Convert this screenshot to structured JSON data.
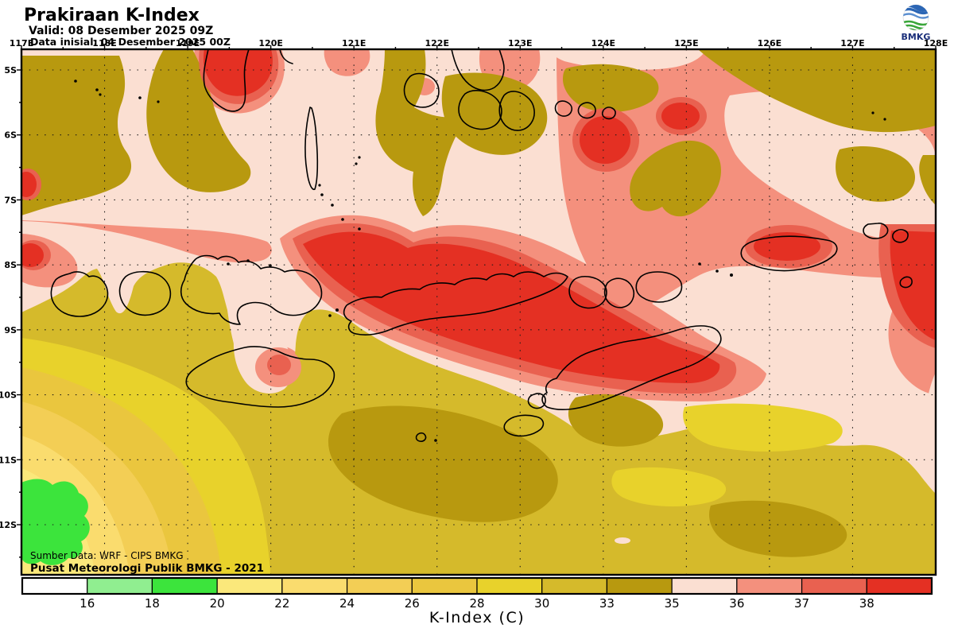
{
  "header": {
    "title": "Prakiraan K-Index",
    "valid_line": "Valid: 08 Desember 2025 09Z",
    "init_line": "Data inisial: 04 Desember 2025 00Z"
  },
  "logo": {
    "text": "BMKG"
  },
  "map": {
    "lon_labels": [
      "117E",
      "118E",
      "119E",
      "120E",
      "121E",
      "122E",
      "123E",
      "124E",
      "125E",
      "126E",
      "127E",
      "128E"
    ],
    "lat_labels": [
      "5S",
      "6S",
      "7S",
      "8S",
      "9S",
      "10S",
      "11S",
      "12S"
    ],
    "source_line1": "Sumber Data: WRF - CIPS BMKG",
    "source_line2": "Pusat Meteorologi Publik BMKG - 2021"
  },
  "palette": {
    "below_16": "#FFFFFF",
    "k16_18": "#90EE90",
    "k18_20": "#3CE43C",
    "k20_22": "#FBE87B",
    "k22_24": "#FADC6E",
    "k24_26": "#F3CE55",
    "k26_28": "#EAC63E",
    "k28_30": "#E8D22B",
    "k30_33": "#D5BA2B",
    "k33_35": "#B8990F",
    "k35_36": "#FBDFD2",
    "k36_37": "#F4907D",
    "k37_38": "#E96150",
    "above_38": "#E43023"
  },
  "colorbar": {
    "title": "K-Index (C)",
    "segments": [
      "below_16",
      "k16_18",
      "k18_20",
      "k20_22",
      "k22_24",
      "k24_26",
      "k26_28",
      "k28_30",
      "k30_33",
      "k33_35",
      "k35_36",
      "k36_37",
      "k37_38",
      "above_38"
    ],
    "labels": [
      "16",
      "18",
      "20",
      "22",
      "24",
      "26",
      "28",
      "30",
      "33",
      "35",
      "36",
      "37",
      "38"
    ]
  }
}
